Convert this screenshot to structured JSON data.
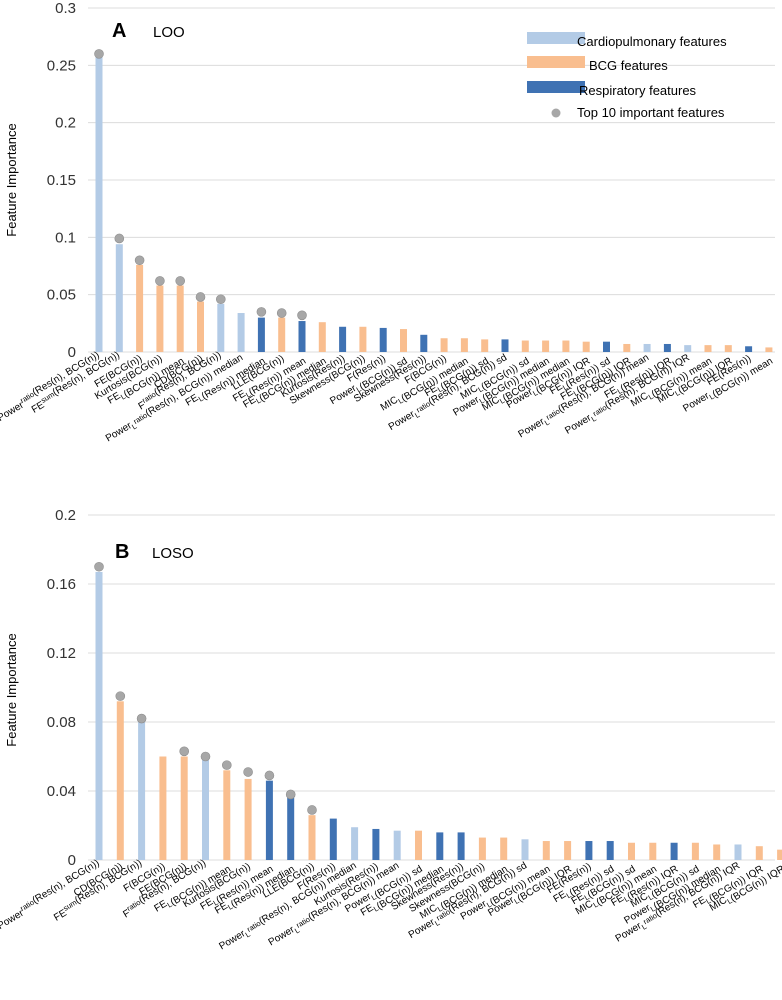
{
  "colors": {
    "cardio": "#b3cbe6",
    "bcg": "#f9be8f",
    "resp": "#3f72b3",
    "marker": "#a7a7a7",
    "grid": "#dcdcdc"
  },
  "legend": {
    "cardio": "Cardiopulmonary features",
    "bcg": "BCG features",
    "resp": "Respiratory features",
    "top10": "Top 10 important features"
  },
  "chart_data": [
    {
      "type": "bar",
      "panel": "A",
      "title": "LOO",
      "ylabel": "Feature Importance",
      "ylim": [
        0,
        0.3
      ],
      "yticks": [
        "0",
        "0.05",
        "0.1",
        "0.15",
        "0.2",
        "0.25",
        "0.3"
      ],
      "categories": [
        "Power^ratio(Res(n), BCG(n))",
        "FE^sum(Res(n), BCG(n))",
        "FE(BCG(n))",
        "Kurtosis(BCG(n))",
        "FE_L(BCG(n)) mean",
        "CD(BCG(n))",
        "F^ratio(Res(n), BCG(n))",
        "Power_L^ratio(Res(n), BCG(n)) median",
        "FE_L(Res(n)) median",
        "LLE(BCG(n))",
        "FE_L(Res(n)) mean",
        "FE_L(BCG(n)) median",
        "Kurtosis(Res(n))",
        "Skewness(BCG(n))",
        "F(Res(n))",
        "Power_L(BCG(n)) sd",
        "Skewness(Res(n))",
        "F(BCG(n))",
        "MIC_L(BCG(n)) median",
        "FE_L(BCG(n)) sd",
        "Power_L^ratio(Res(n), BCG(n)) sd",
        "MIC_L(BCG(n)) sd",
        "Power_L(BCG(n)) median",
        "MIC_L(BCG(n)) median",
        "Power_L(BCG(n)) IQR",
        "FE_L(Res(n)) sd",
        "FE_L(BCG(n)) IQR",
        "Power_L^ratio(Res(n), BCG(n)) mean",
        "FE_L(Res(n)) IQR",
        "Power_L^ratio(Res(n), BCG(n)) IQR",
        "MIC_L(BCG(n)) mean",
        "MIC_L(BCG(n)) IQR",
        "FE(Res(n))",
        "Power_L(BCG(n)) mean"
      ],
      "groups": [
        "cardio",
        "cardio",
        "bcg",
        "bcg",
        "bcg",
        "bcg",
        "cardio",
        "cardio",
        "resp",
        "bcg",
        "resp",
        "bcg",
        "resp",
        "bcg",
        "resp",
        "bcg",
        "resp",
        "bcg",
        "bcg",
        "bcg",
        "resp",
        "bcg",
        "bcg",
        "bcg",
        "bcg",
        "resp",
        "bcg",
        "cardio",
        "resp",
        "cardio",
        "bcg",
        "bcg",
        "resp",
        "bcg"
      ],
      "values": [
        0.257,
        0.094,
        0.076,
        0.058,
        0.058,
        0.044,
        0.042,
        0.034,
        0.03,
        0.03,
        0.027,
        0.026,
        0.022,
        0.022,
        0.021,
        0.02,
        0.015,
        0.012,
        0.012,
        0.011,
        0.011,
        0.01,
        0.01,
        0.01,
        0.009,
        0.009,
        0.007,
        0.007,
        0.007,
        0.006,
        0.006,
        0.006,
        0.005,
        0.004
      ],
      "top10": [
        0.26,
        0.099,
        0.08,
        0.062,
        0.062,
        0.048,
        0.046,
        null,
        0.035,
        0.034,
        0.032
      ]
    },
    {
      "type": "bar",
      "panel": "B",
      "title": "LOSO",
      "ylabel": "Feature Importance",
      "ylim": [
        0,
        0.2
      ],
      "yticks": [
        "0",
        "0.04",
        "0.08",
        "0.12",
        "0.16",
        "0.2"
      ],
      "categories": [
        "Power^ratio(Res(n), BCG(n))",
        "CD(BCG(n))",
        "FE^sum(Res(n), BCG(n))",
        "F(BCG(n))",
        "FE(BCG(n))",
        "F^ratio(Res(n), BCG(n))",
        "FE_L(BCG(n)) mean",
        "Kurtosis(BCG(n))",
        "FE_L(Res(n)) mean",
        "FE_L(Res(n)) median",
        "LLE(BCG(n))",
        "F(Res(n))",
        "Power_L^ratio(Res(n), BCG(n)) median",
        "Kurtosis(Res(n))",
        "Power_L^ratio(Res(n), BCG(n)) mean",
        "Power_L(BCG(n)) sd",
        "FE_L(BCG(n)) median",
        "Skewness(Res(n))",
        "Skewness(BCG(n))",
        "MIC_L(BCG(n)) median",
        "Power_L^ratio(Res(n), BCG(n)) sd",
        "Power_L(BCG(n)) mean",
        "Power_L(BCG(n)) IQR",
        "FE(Res(n))",
        "FE_L(Res(n)) sd",
        "FE_L(BCG(n)) sd",
        "MIC_L(BCG(n)) mean",
        "FE_L(Res(n)) IQR",
        "MIC_L(BCG(n)) sd",
        "Power_L(BCG(n)) median",
        "Power_L^ratio(Res(n), BCG(n)) IQR",
        "FE_L(BCG(n)) IQR",
        "MIC_L(BCG(n)) IQR"
      ],
      "groups": [
        "cardio",
        "bcg",
        "cardio",
        "bcg",
        "bcg",
        "cardio",
        "bcg",
        "bcg",
        "resp",
        "resp",
        "bcg",
        "resp",
        "cardio",
        "resp",
        "cardio",
        "bcg",
        "resp",
        "resp",
        "bcg",
        "bcg",
        "cardio",
        "bcg",
        "bcg",
        "resp",
        "resp",
        "bcg",
        "bcg",
        "resp",
        "bcg",
        "bcg",
        "cardio",
        "bcg",
        "bcg"
      ],
      "values": [
        0.167,
        0.092,
        0.08,
        0.06,
        0.06,
        0.058,
        0.052,
        0.047,
        0.046,
        0.036,
        0.026,
        0.024,
        0.019,
        0.018,
        0.017,
        0.017,
        0.016,
        0.016,
        0.013,
        0.013,
        0.012,
        0.011,
        0.011,
        0.011,
        0.011,
        0.01,
        0.01,
        0.01,
        0.01,
        0.009,
        0.009,
        0.008,
        0.006
      ],
      "top10": [
        0.17,
        0.095,
        0.082,
        null,
        0.063,
        0.06,
        0.055,
        0.051,
        0.049,
        0.038,
        0.029
      ]
    }
  ]
}
